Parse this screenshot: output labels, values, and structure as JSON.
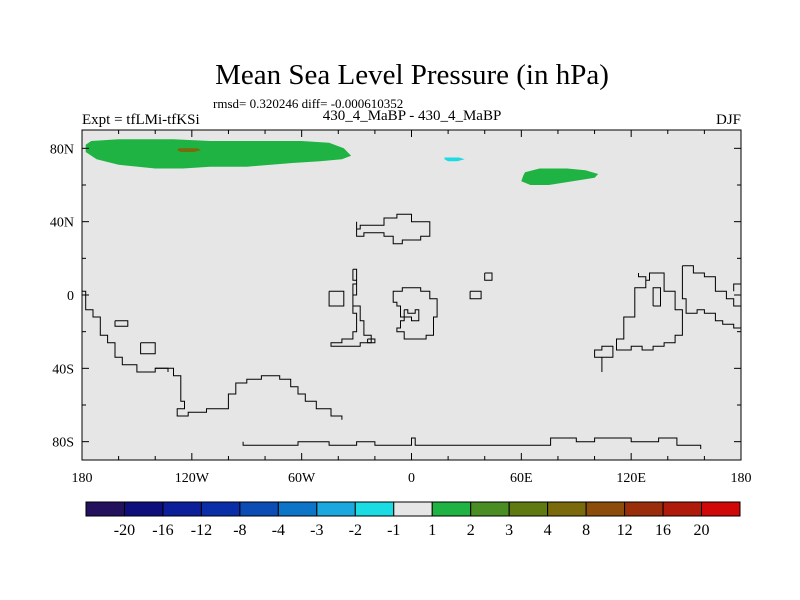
{
  "chart_data": {
    "type": "map",
    "title": "Mean Sea Level Pressure (in hPa)",
    "stats_line": "rmsd= 0.320246 diff= -0.000610352",
    "left_label": "Expt = tfLMi-tfKSi",
    "center_label": "430_4_MaBP - 430_4_MaBP",
    "season": "DJF",
    "lon_range": [
      -180,
      180
    ],
    "lat_range": [
      -90,
      90
    ],
    "x_ticks": [
      {
        "value": -180,
        "label": "180"
      },
      {
        "value": -120,
        "label": "120W"
      },
      {
        "value": -60,
        "label": "60W"
      },
      {
        "value": 0,
        "label": "0"
      },
      {
        "value": 60,
        "label": "60E"
      },
      {
        "value": 120,
        "label": "120E"
      },
      {
        "value": 180,
        "label": "180"
      }
    ],
    "y_ticks": [
      {
        "value": 80,
        "label": "80N"
      },
      {
        "value": 40,
        "label": "40N"
      },
      {
        "value": 0,
        "label": "0"
      },
      {
        "value": -40,
        "label": "40S"
      },
      {
        "value": -80,
        "label": "80S"
      }
    ],
    "background_color": "#e6e6e6",
    "colorbar": {
      "colors": [
        "#24115e",
        "#0e0e7d",
        "#0d1e9a",
        "#0a2ea8",
        "#0c4cb5",
        "#0d75c8",
        "#1ba8de",
        "#1bdbe3",
        "#e6e6e6",
        "#1fb344",
        "#4a8d23",
        "#5f7a11",
        "#7a6a0b",
        "#8c4c0a",
        "#9b2e0a",
        "#b01a0a",
        "#d00808"
      ],
      "labels": [
        "-20",
        "-16",
        "-12",
        "-8",
        "-4",
        "-3",
        "-2",
        "-1",
        "1",
        "2",
        "3",
        "4",
        "8",
        "12",
        "16",
        "20"
      ]
    },
    "anomaly_regions": [
      {
        "name": "arctic-positive-anomaly",
        "color": "#1fb344",
        "level": "1 to 2",
        "points": [
          [
            -178,
            82
          ],
          [
            -175,
            84
          ],
          [
            -160,
            85
          ],
          [
            -130,
            85
          ],
          [
            -110,
            84
          ],
          [
            -90,
            84
          ],
          [
            -60,
            84
          ],
          [
            -45,
            83
          ],
          [
            -37,
            80
          ],
          [
            -33,
            76
          ],
          [
            -38,
            74
          ],
          [
            -50,
            73
          ],
          [
            -65,
            72
          ],
          [
            -90,
            70
          ],
          [
            -110,
            70
          ],
          [
            -125,
            69
          ],
          [
            -140,
            69
          ],
          [
            -160,
            71
          ],
          [
            -172,
            74
          ],
          [
            -178,
            78
          ]
        ]
      },
      {
        "name": "north-pacific-small-anomaly",
        "color": "#7a6a0b",
        "level": "4 to 8",
        "points": [
          [
            -127,
            80
          ],
          [
            -117,
            80
          ],
          [
            -115,
            79
          ],
          [
            -119,
            78
          ],
          [
            -126,
            78
          ],
          [
            -128,
            79
          ]
        ]
      },
      {
        "name": "barents-negative-anomaly",
        "color": "#1bdbe3",
        "level": "-2 to -1",
        "points": [
          [
            18,
            75
          ],
          [
            26,
            75
          ],
          [
            29,
            74
          ],
          [
            25,
            73
          ],
          [
            20,
            73
          ],
          [
            18,
            74
          ]
        ]
      },
      {
        "name": "siberia-positive-anomaly",
        "color": "#1fb344",
        "level": "1 to 2",
        "points": [
          [
            62,
            67
          ],
          [
            70,
            69
          ],
          [
            85,
            69
          ],
          [
            95,
            68
          ],
          [
            102,
            66
          ],
          [
            100,
            64
          ],
          [
            88,
            62
          ],
          [
            75,
            60
          ],
          [
            65,
            60
          ],
          [
            60,
            62
          ],
          [
            61,
            65
          ]
        ]
      }
    ],
    "coastlines": [
      [
        [
          -180,
          2
        ],
        [
          -178,
          2
        ],
        [
          -178,
          -8
        ],
        [
          -174,
          -8
        ],
        [
          -174,
          -12
        ],
        [
          -170,
          -12
        ],
        [
          -170,
          -22
        ],
        [
          -166,
          -22
        ],
        [
          -166,
          -26
        ],
        [
          -162,
          -26
        ],
        [
          -162,
          -34
        ],
        [
          -158,
          -34
        ],
        [
          -158,
          -38
        ],
        [
          -150,
          -38
        ],
        [
          -150,
          -42
        ],
        [
          -140,
          -42
        ],
        [
          -140,
          -40
        ],
        [
          -130,
          -40
        ],
        [
          -130,
          -44
        ],
        [
          -126,
          -44
        ],
        [
          -126,
          -58
        ],
        [
          -124,
          -58
        ],
        [
          -124,
          -62
        ],
        [
          -128,
          -62
        ],
        [
          -128,
          -66
        ],
        [
          -122,
          -66
        ],
        [
          -122,
          -64
        ],
        [
          -112,
          -64
        ],
        [
          -112,
          -62
        ],
        [
          -100,
          -62
        ],
        [
          -100,
          -54
        ],
        [
          -96,
          -54
        ],
        [
          -96,
          -48
        ],
        [
          -90,
          -48
        ],
        [
          -90,
          -46
        ],
        [
          -82,
          -46
        ],
        [
          -82,
          -44
        ],
        [
          -72,
          -44
        ],
        [
          -72,
          -46
        ],
        [
          -66,
          -46
        ],
        [
          -66,
          -50
        ],
        [
          -62,
          -50
        ],
        [
          -62,
          -54
        ],
        [
          -58,
          -54
        ],
        [
          -58,
          -58
        ],
        [
          -52,
          -58
        ],
        [
          -52,
          -62
        ],
        [
          -44,
          -62
        ],
        [
          -44,
          -66
        ],
        [
          -38,
          -66
        ],
        [
          -38,
          -68
        ]
      ],
      [
        [
          -162,
          -14
        ],
        [
          -155,
          -14
        ],
        [
          -155,
          -17
        ],
        [
          -162,
          -17
        ],
        [
          -162,
          -14
        ]
      ],
      [
        [
          -148,
          -26
        ],
        [
          -140,
          -26
        ],
        [
          -140,
          -32
        ],
        [
          -148,
          -32
        ],
        [
          -148,
          -26
        ]
      ],
      [
        [
          -140,
          -40
        ],
        [
          -133,
          -40
        ],
        [
          -133,
          -42
        ]
      ],
      [
        [
          -92,
          -80
        ],
        [
          -92,
          -82
        ],
        [
          -62,
          -82
        ],
        [
          -62,
          -80
        ],
        [
          -45,
          -80
        ],
        [
          -45,
          -82
        ],
        [
          -30,
          -82
        ],
        [
          -30,
          -80
        ],
        [
          -20,
          -80
        ],
        [
          -20,
          -82
        ],
        [
          0,
          -82
        ],
        [
          0,
          -78
        ],
        [
          2,
          -78
        ],
        [
          2,
          -82
        ],
        [
          76,
          -82
        ],
        [
          76,
          -78
        ],
        [
          90,
          -78
        ],
        [
          90,
          -80
        ],
        [
          100,
          -80
        ],
        [
          100,
          -78
        ],
        [
          120,
          -78
        ],
        [
          120,
          -80
        ],
        [
          135,
          -80
        ],
        [
          135,
          -78
        ],
        [
          145,
          -78
        ],
        [
          145,
          -82
        ],
        [
          158,
          -82
        ],
        [
          158,
          -84
        ]
      ],
      [
        [
          -30,
          40
        ],
        [
          -30,
          36
        ],
        [
          -28,
          36
        ],
        [
          -28,
          38
        ],
        [
          -15,
          38
        ],
        [
          -15,
          42
        ],
        [
          -8,
          42
        ],
        [
          -8,
          44
        ],
        [
          0,
          44
        ],
        [
          0,
          40
        ],
        [
          10,
          40
        ],
        [
          10,
          32
        ],
        [
          5,
          32
        ],
        [
          5,
          30
        ],
        [
          -5,
          30
        ],
        [
          -5,
          28
        ],
        [
          -10,
          28
        ],
        [
          -10,
          32
        ],
        [
          -15,
          32
        ],
        [
          -15,
          34
        ],
        [
          -26,
          34
        ],
        [
          -26,
          32
        ],
        [
          -30,
          32
        ],
        [
          -30,
          36
        ]
      ],
      [
        [
          -45,
          2
        ],
        [
          -45,
          -6
        ],
        [
          -37,
          -6
        ],
        [
          -37,
          2
        ],
        [
          -45,
          2
        ]
      ],
      [
        [
          -32,
          14
        ],
        [
          -32,
          8
        ],
        [
          -30,
          8
        ],
        [
          -30,
          0
        ],
        [
          -32,
          0
        ],
        [
          -32,
          -6
        ],
        [
          -28,
          -6
        ],
        [
          -28,
          -14
        ],
        [
          -26,
          -14
        ],
        [
          -26,
          -22
        ],
        [
          -22,
          -22
        ],
        [
          -22,
          -26
        ],
        [
          -28,
          -26
        ],
        [
          -28,
          -28
        ],
        [
          -44,
          -28
        ],
        [
          -44,
          -26
        ],
        [
          -38,
          -26
        ],
        [
          -38,
          -24
        ],
        [
          -32,
          -24
        ],
        [
          -32,
          -20
        ],
        [
          -30,
          -20
        ],
        [
          -30,
          -10
        ],
        [
          -32,
          -10
        ],
        [
          -32,
          6
        ],
        [
          -30,
          6
        ],
        [
          -30,
          14
        ],
        [
          -32,
          14
        ]
      ],
      [
        [
          -24,
          -24
        ],
        [
          -20,
          -24
        ],
        [
          -20,
          -26
        ],
        [
          -24,
          -26
        ],
        [
          -24,
          -24
        ]
      ],
      [
        [
          -10,
          0
        ],
        [
          -10,
          2
        ],
        [
          -5,
          2
        ],
        [
          -5,
          4
        ],
        [
          5,
          4
        ],
        [
          5,
          2
        ],
        [
          10,
          2
        ],
        [
          10,
          -2
        ],
        [
          14,
          -2
        ],
        [
          14,
          -12
        ],
        [
          12,
          -12
        ],
        [
          12,
          -22
        ],
        [
          8,
          -22
        ],
        [
          8,
          -24
        ],
        [
          -4,
          -24
        ],
        [
          -4,
          -20
        ],
        [
          -8,
          -20
        ],
        [
          -8,
          -18
        ],
        [
          -6,
          -18
        ],
        [
          -6,
          -14
        ],
        [
          -4,
          -14
        ],
        [
          -4,
          -12
        ],
        [
          -6,
          -12
        ],
        [
          -6,
          -6
        ],
        [
          -8,
          -6
        ],
        [
          -8,
          -4
        ],
        [
          -10,
          -4
        ],
        [
          -10,
          0
        ]
      ],
      [
        [
          -4,
          -8
        ],
        [
          -4,
          -12
        ],
        [
          0,
          -12
        ],
        [
          0,
          -14
        ],
        [
          4,
          -14
        ],
        [
          4,
          -8
        ],
        [
          2,
          -8
        ],
        [
          2,
          -10
        ],
        [
          -2,
          -10
        ],
        [
          -2,
          -8
        ],
        [
          -4,
          -8
        ]
      ],
      [
        [
          32,
          2
        ],
        [
          32,
          -2
        ],
        [
          38,
          -2
        ],
        [
          38,
          2
        ],
        [
          32,
          2
        ]
      ],
      [
        [
          40,
          12
        ],
        [
          40,
          8
        ],
        [
          44,
          8
        ],
        [
          44,
          12
        ],
        [
          40,
          12
        ]
      ],
      [
        [
          104,
          -42
        ],
        [
          104,
          -34
        ],
        [
          100,
          -34
        ],
        [
          100,
          -30
        ],
        [
          104,
          -30
        ],
        [
          104,
          -28
        ],
        [
          110,
          -28
        ],
        [
          110,
          -34
        ],
        [
          104,
          -34
        ]
      ],
      [
        [
          124,
          12
        ],
        [
          124,
          10
        ],
        [
          128,
          10
        ],
        [
          128,
          4
        ],
        [
          122,
          4
        ],
        [
          122,
          -12
        ],
        [
          116,
          -12
        ],
        [
          116,
          -24
        ],
        [
          112,
          -24
        ],
        [
          112,
          -30
        ],
        [
          120,
          -30
        ],
        [
          120,
          -28
        ],
        [
          126,
          -28
        ],
        [
          126,
          -30
        ],
        [
          132,
          -30
        ],
        [
          132,
          -28
        ],
        [
          138,
          -28
        ],
        [
          138,
          -26
        ],
        [
          144,
          -26
        ],
        [
          144,
          -22
        ],
        [
          148,
          -22
        ],
        [
          148,
          -8
        ],
        [
          144,
          -8
        ],
        [
          144,
          2
        ],
        [
          138,
          2
        ],
        [
          138,
          12
        ],
        [
          130,
          12
        ],
        [
          130,
          8
        ],
        [
          128,
          8
        ],
        [
          128,
          10
        ]
      ],
      [
        [
          132,
          -6
        ],
        [
          132,
          4
        ],
        [
          136,
          4
        ],
        [
          136,
          -6
        ],
        [
          132,
          -6
        ]
      ],
      [
        [
          148,
          16
        ],
        [
          148,
          -2
        ],
        [
          150,
          -2
        ],
        [
          150,
          -10
        ],
        [
          156,
          -10
        ],
        [
          156,
          -8
        ],
        [
          160,
          -8
        ],
        [
          160,
          -10
        ],
        [
          166,
          -10
        ],
        [
          166,
          -14
        ],
        [
          170,
          -14
        ],
        [
          170,
          -16
        ],
        [
          176,
          -16
        ],
        [
          176,
          -18
        ],
        [
          180,
          -18
        ]
      ],
      [
        [
          148,
          16
        ],
        [
          154,
          16
        ],
        [
          154,
          12
        ],
        [
          160,
          12
        ],
        [
          160,
          10
        ],
        [
          166,
          10
        ],
        [
          166,
          2
        ],
        [
          172,
          2
        ],
        [
          172,
          -2
        ],
        [
          176,
          -2
        ],
        [
          176,
          -6
        ],
        [
          180,
          -6
        ]
      ],
      [
        [
          176,
          2
        ],
        [
          176,
          6
        ],
        [
          180,
          6
        ]
      ]
    ]
  }
}
